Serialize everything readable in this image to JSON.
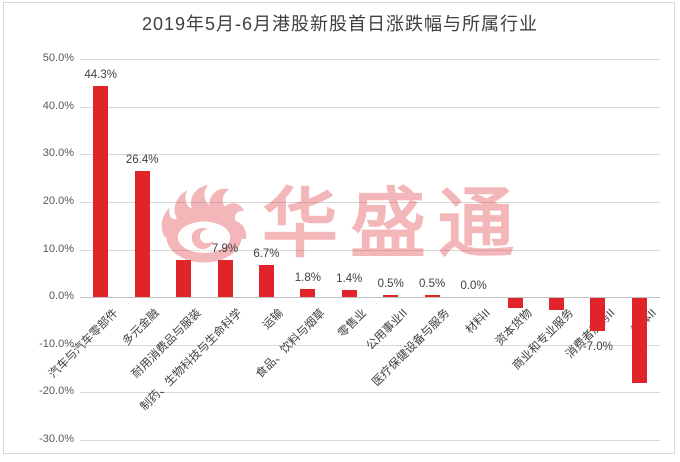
{
  "title": "2019年5月-6月港股新股首日涨跌幅与所属行业",
  "watermark": {
    "text": "华盛通",
    "icon": "flame-logo-icon",
    "color": "#e02429"
  },
  "colors": {
    "bar": "#e02429",
    "grid": "#d9d9d9",
    "zero_axis": "#bfbfbf",
    "tick_label": "#595959",
    "data_label": "#404040",
    "title": "#404040"
  },
  "chart_data": {
    "type": "bar",
    "title": "2019年5月-6月港股新股首日涨跌幅与所属行业",
    "categories": [
      "汽车与汽车零部件",
      "多元金融",
      "耐用消费品与服装",
      "制药、生物科技与生命科学",
      "运输",
      "食品、饮料与烟草",
      "零售业",
      "公用事业II",
      "医疗保健设备与服务",
      "材料II",
      "资本货物",
      "商业和专业服务",
      "消费者服务II",
      "媒体II"
    ],
    "values": [
      44.3,
      26.4,
      7.9,
      7.9,
      6.7,
      1.8,
      1.4,
      0.5,
      0.5,
      0.0,
      -2.0,
      -2.4,
      -7.0,
      -17.8
    ],
    "bar_labels": [
      "44.3%",
      "26.4%",
      "",
      "7.9%",
      "6.7%",
      "1.8%",
      "1.4%",
      "0.5%",
      "0.5%",
      "0.0%",
      "",
      "",
      "-7.0%",
      ""
    ],
    "xlabel": "",
    "ylabel": "",
    "ylim": [
      -30,
      50
    ],
    "yticks": [
      50,
      40,
      30,
      20,
      10,
      0,
      -10,
      -20,
      -30
    ],
    "ytick_labels": [
      "50.0%",
      "40.0%",
      "30.0%",
      "20.0%",
      "10.0%",
      "0.0%",
      "-10.0%",
      "-20.0%",
      "-30.0%"
    ],
    "grid": true,
    "legend": "none",
    "category_label_rotation_deg": -45
  }
}
